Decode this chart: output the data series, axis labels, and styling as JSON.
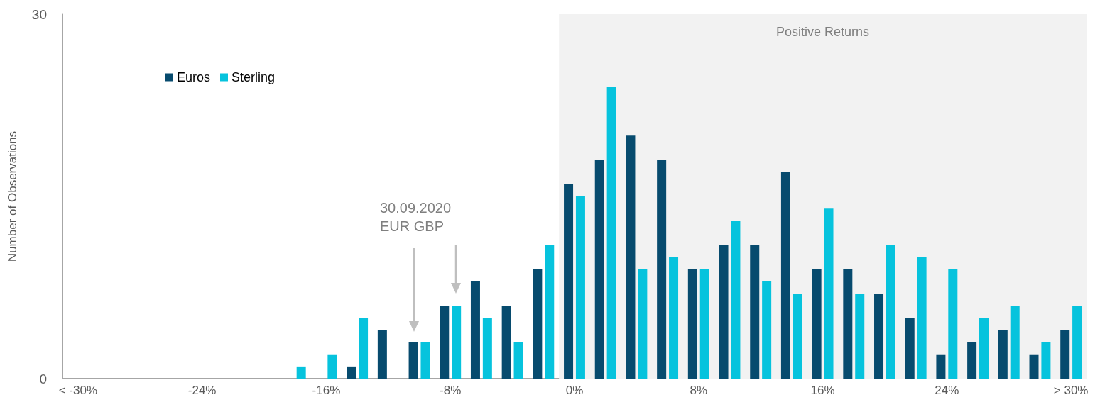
{
  "chart_data": {
    "type": "bar",
    "ylabel": "Number of Observations",
    "categories": [
      "< -30%",
      null,
      null,
      null,
      "-24%",
      null,
      null,
      null,
      "-16%",
      null,
      null,
      null,
      "-8%",
      null,
      null,
      null,
      "0%",
      null,
      null,
      null,
      "8%",
      null,
      null,
      null,
      "16%",
      null,
      null,
      null,
      "24%",
      null,
      null,
      null,
      "> 30%"
    ],
    "series": [
      {
        "name": "Euros",
        "color": "#074b6e",
        "values": [
          0,
          0,
          0,
          0,
          0,
          0,
          0,
          0,
          0,
          1,
          4,
          3,
          6,
          8,
          6,
          9,
          16,
          18,
          20,
          18,
          9,
          11,
          11,
          17,
          9,
          9,
          7,
          5,
          2,
          3,
          4,
          2,
          4
        ]
      },
      {
        "name": "Sterling",
        "color": "#06c3dd",
        "values": [
          0,
          0,
          0,
          0,
          0,
          0,
          0,
          1,
          2,
          5,
          0,
          3,
          6,
          5,
          3,
          11,
          15,
          24,
          9,
          10,
          9,
          13,
          8,
          7,
          14,
          7,
          11,
          10,
          9,
          5,
          6,
          3,
          6
        ]
      }
    ],
    "ylim": [
      0,
      30
    ],
    "yticks": [
      0,
      30
    ],
    "grid": false,
    "legend": "top left",
    "bands": [
      {
        "axis": "x",
        "from": "0%",
        "to": "> 30%",
        "label": "Positive Returns",
        "color": "#f2f2f2"
      }
    ],
    "annotations": [
      "30.09.2020\nEUR GBP"
    ]
  }
}
